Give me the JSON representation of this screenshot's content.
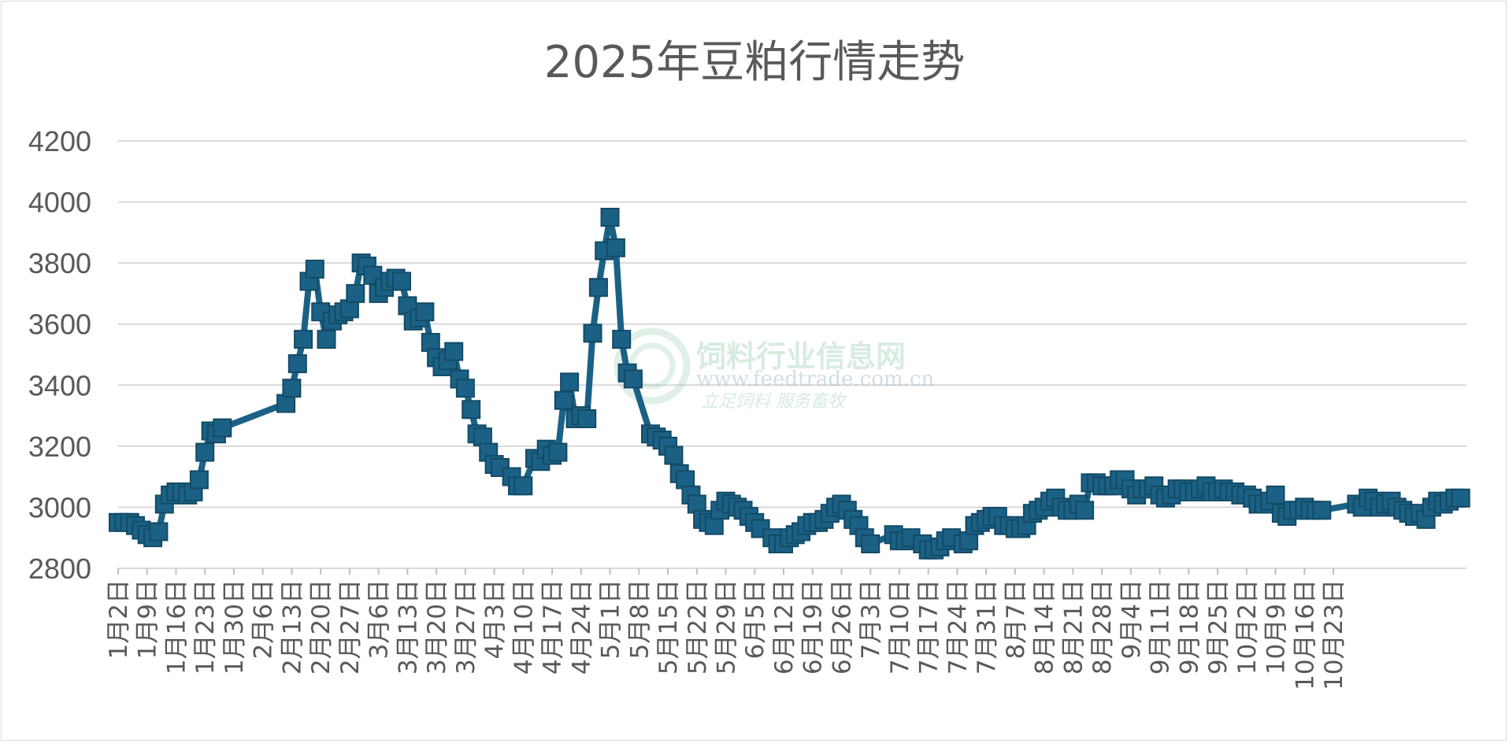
{
  "chart_data": {
    "type": "line",
    "title": "2025年豆粕行情走势",
    "xlabel": "",
    "ylabel": "",
    "ylim": [
      2800,
      4200
    ],
    "yticks": [
      2800,
      3000,
      3200,
      3400,
      3600,
      3800,
      4000,
      4200
    ],
    "grid": true,
    "legend": "none",
    "line_color": "#1b6185",
    "marker": "square",
    "x_labels": [
      "1月2日",
      "1月9日",
      "1月16日",
      "1月23日",
      "1月30日",
      "2月6日",
      "2月13日",
      "2月20日",
      "2月27日",
      "3月6日",
      "3月13日",
      "3月20日",
      "3月27日",
      "4月3日",
      "4月10日",
      "4月17日",
      "4月24日",
      "5月1日",
      "5月8日",
      "5月15日",
      "5月22日",
      "5月29日",
      "6月5日",
      "6月12日",
      "6月19日",
      "6月26日",
      "7月3日",
      "7月10日",
      "7月17日",
      "7月24日",
      "7月31日",
      "8月7日",
      "8月14日",
      "8月21日",
      "8月28日",
      "9月4日",
      "9月11日",
      "9月18日",
      "9月25日",
      "10月2日",
      "10月9日",
      "10月16日",
      "10月23日"
    ],
    "series": [
      {
        "values": [
          [
            0,
            2950
          ],
          [
            1,
            2950
          ],
          [
            2,
            2950
          ],
          [
            3,
            2940
          ],
          [
            4,
            2925
          ],
          [
            5,
            2910
          ],
          [
            6,
            2900
          ],
          [
            7,
            2920
          ],
          [
            8,
            3010
          ],
          [
            9,
            3040
          ],
          [
            10,
            3050
          ],
          [
            11,
            3050
          ],
          [
            12,
            3040
          ],
          [
            13,
            3050
          ],
          [
            14,
            3090
          ],
          [
            15,
            3180
          ],
          [
            16,
            3250
          ],
          [
            17,
            3240
          ],
          [
            18,
            3260
          ],
          [
            29,
            3340
          ],
          [
            30,
            3390
          ],
          [
            31,
            3470
          ],
          [
            32,
            3550
          ],
          [
            33,
            3740
          ],
          [
            34,
            3780
          ],
          [
            35,
            3640
          ],
          [
            36,
            3550
          ],
          [
            37,
            3610
          ],
          [
            38,
            3630
          ],
          [
            39,
            3640
          ],
          [
            40,
            3650
          ],
          [
            41,
            3700
          ],
          [
            42,
            3800
          ],
          [
            43,
            3790
          ],
          [
            44,
            3760
          ],
          [
            45,
            3700
          ],
          [
            46,
            3720
          ],
          [
            47,
            3740
          ],
          [
            48,
            3750
          ],
          [
            49,
            3740
          ],
          [
            50,
            3660
          ],
          [
            51,
            3610
          ],
          [
            52,
            3620
          ],
          [
            53,
            3640
          ],
          [
            54,
            3540
          ],
          [
            55,
            3490
          ],
          [
            56,
            3460
          ],
          [
            57,
            3480
          ],
          [
            58,
            3510
          ],
          [
            59,
            3420
          ],
          [
            60,
            3390
          ],
          [
            61,
            3320
          ],
          [
            62,
            3240
          ],
          [
            63,
            3230
          ],
          [
            64,
            3180
          ],
          [
            65,
            3140
          ],
          [
            66,
            3130
          ],
          [
            68,
            3100
          ],
          [
            69,
            3070
          ],
          [
            70,
            3070
          ],
          [
            72,
            3160
          ],
          [
            73,
            3150
          ],
          [
            74,
            3190
          ],
          [
            75,
            3170
          ],
          [
            76,
            3180
          ],
          [
            77,
            3350
          ],
          [
            78,
            3410
          ],
          [
            79,
            3290
          ],
          [
            80,
            3300
          ],
          [
            81,
            3290
          ],
          [
            82,
            3570
          ],
          [
            83,
            3720
          ],
          [
            84,
            3840
          ],
          [
            85,
            3950
          ],
          [
            86,
            3850
          ],
          [
            87,
            3550
          ],
          [
            88,
            3440
          ],
          [
            89,
            3420
          ],
          [
            92,
            3240
          ],
          [
            93,
            3230
          ],
          [
            94,
            3220
          ],
          [
            95,
            3200
          ],
          [
            96,
            3170
          ],
          [
            97,
            3110
          ],
          [
            98,
            3090
          ],
          [
            99,
            3040
          ],
          [
            100,
            3010
          ],
          [
            101,
            2960
          ],
          [
            102,
            2950
          ],
          [
            103,
            2940
          ],
          [
            104,
            2990
          ],
          [
            105,
            3020
          ],
          [
            106,
            3010
          ],
          [
            107,
            3000
          ],
          [
            108,
            2990
          ],
          [
            109,
            2970
          ],
          [
            110,
            2950
          ],
          [
            111,
            2930
          ],
          [
            113,
            2900
          ],
          [
            114,
            2880
          ],
          [
            115,
            2880
          ],
          [
            116,
            2900
          ],
          [
            117,
            2910
          ],
          [
            118,
            2920
          ],
          [
            119,
            2940
          ],
          [
            120,
            2950
          ],
          [
            121,
            2950
          ],
          [
            122,
            2960
          ],
          [
            123,
            2980
          ],
          [
            124,
            3000
          ],
          [
            125,
            3010
          ],
          [
            126,
            2990
          ],
          [
            127,
            2960
          ],
          [
            128,
            2940
          ],
          [
            129,
            2900
          ],
          [
            130,
            2880
          ],
          [
            134,
            2910
          ],
          [
            135,
            2890
          ],
          [
            136,
            2890
          ],
          [
            137,
            2900
          ],
          [
            139,
            2880
          ],
          [
            140,
            2860
          ],
          [
            141,
            2860
          ],
          [
            142,
            2870
          ],
          [
            143,
            2890
          ],
          [
            144,
            2900
          ],
          [
            146,
            2880
          ],
          [
            147,
            2890
          ],
          [
            148,
            2940
          ],
          [
            149,
            2950
          ],
          [
            150,
            2960
          ],
          [
            151,
            2970
          ],
          [
            152,
            2970
          ],
          [
            153,
            2940
          ],
          [
            154,
            2940
          ],
          [
            155,
            2930
          ],
          [
            156,
            2930
          ],
          [
            157,
            2940
          ],
          [
            158,
            2980
          ],
          [
            159,
            2990
          ],
          [
            160,
            3000
          ],
          [
            161,
            3020
          ],
          [
            162,
            3030
          ],
          [
            163,
            3000
          ],
          [
            164,
            2990
          ],
          [
            165,
            2990
          ],
          [
            166,
            3010
          ],
          [
            167,
            2990
          ],
          [
            168,
            3080
          ],
          [
            169,
            3080
          ],
          [
            170,
            3070
          ],
          [
            171,
            3070
          ],
          [
            172,
            3070
          ],
          [
            173,
            3090
          ],
          [
            174,
            3090
          ],
          [
            175,
            3060
          ],
          [
            176,
            3040
          ],
          [
            177,
            3060
          ],
          [
            178,
            3060
          ],
          [
            179,
            3070
          ],
          [
            180,
            3040
          ],
          [
            181,
            3030
          ],
          [
            182,
            3040
          ],
          [
            183,
            3060
          ],
          [
            184,
            3060
          ],
          [
            185,
            3050
          ],
          [
            186,
            3050
          ],
          [
            187,
            3060
          ],
          [
            188,
            3070
          ],
          [
            189,
            3050
          ],
          [
            190,
            3050
          ],
          [
            191,
            3060
          ],
          [
            192,
            3050
          ],
          [
            193,
            3050
          ],
          [
            194,
            3040
          ],
          [
            195,
            3040
          ],
          [
            196,
            3030
          ],
          [
            197,
            3010
          ],
          [
            198,
            3010
          ],
          [
            199,
            3020
          ],
          [
            200,
            3040
          ],
          [
            201,
            2980
          ],
          [
            202,
            2970
          ],
          [
            203,
            2990
          ],
          [
            204,
            2990
          ],
          [
            205,
            3000
          ],
          [
            206,
            2990
          ],
          [
            207,
            2990
          ],
          [
            208,
            2990
          ],
          [
            214,
            3010
          ],
          [
            215,
            3000
          ],
          [
            216,
            3030
          ],
          [
            217,
            3020
          ],
          [
            218,
            3000
          ],
          [
            219,
            3010
          ],
          [
            220,
            3020
          ],
          [
            221,
            3000
          ],
          [
            222,
            2990
          ],
          [
            223,
            2980
          ],
          [
            224,
            2970
          ],
          [
            225,
            2980
          ],
          [
            226,
            2960
          ],
          [
            227,
            3000
          ],
          [
            228,
            3020
          ],
          [
            229,
            3010
          ],
          [
            230,
            3020
          ],
          [
            231,
            3030
          ],
          [
            232,
            3030
          ]
        ]
      }
    ]
  },
  "watermark": {
    "name": "饲料行业信息网",
    "url": "www.feedtrade.com.cn",
    "slogan": "立足饲料  服务畜牧"
  }
}
